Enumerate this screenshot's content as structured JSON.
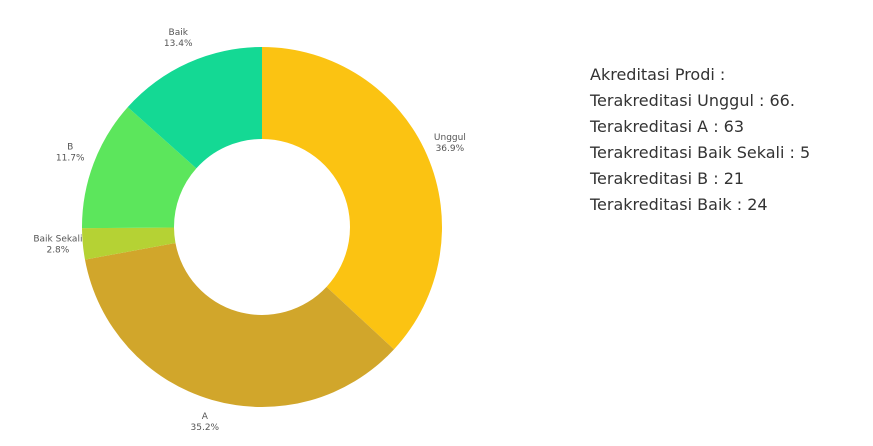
{
  "chart_data": {
    "type": "donut",
    "categories": [
      "Unggul",
      "A",
      "Baik Sekali",
      "B",
      "Baik"
    ],
    "values": [
      36.9,
      35.2,
      2.8,
      11.7,
      13.4
    ],
    "value_labels": [
      "36.9%",
      "35.2%",
      "2.8%",
      "11.7%",
      "13.4%"
    ],
    "colors": [
      "#fbc312",
      "#d1a62b",
      "#b5d234",
      "#5ce65c",
      "#14d994"
    ]
  },
  "info": {
    "title": "Akreditasi Prodi :",
    "lines": [
      "Terakreditasi Unggul : 66.",
      "Terakreditasi A : 63",
      "Terakreditasi Baik Sekali : 5",
      "Terakreditasi B : 21",
      "Terakreditasi Baik : 24"
    ]
  }
}
